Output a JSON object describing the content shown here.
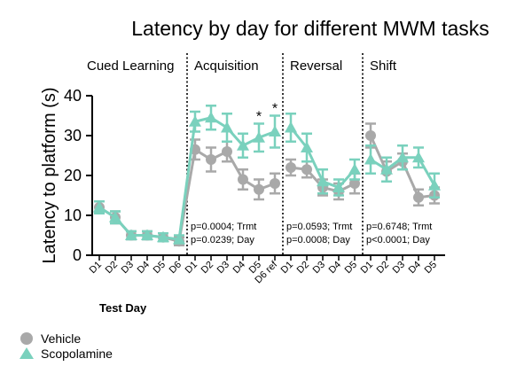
{
  "chart_data": {
    "type": "line",
    "title": "Latency by day for different MWM tasks",
    "ylabel": "Latency to platform (s)",
    "xlabel": "Test Day",
    "ylim": [
      0,
      40
    ],
    "yticks": [
      "0",
      "10",
      "20",
      "30",
      "40"
    ],
    "x": [
      "D1",
      "D2",
      "D3",
      "D4",
      "D5",
      "D6",
      "D1",
      "D2",
      "D3",
      "D4",
      "D5",
      "D6 ref",
      "D1",
      "D2",
      "D3",
      "D4",
      "D5",
      "D1",
      "D2",
      "D3",
      "D4",
      "D5"
    ],
    "phases": [
      {
        "label": "Cued Learning",
        "start": 0,
        "end": 5,
        "stats": []
      },
      {
        "label": "Acquisition",
        "start": 6,
        "end": 11,
        "stats": [
          "p=0.0004; Trmt",
          "p=0.0239; Day"
        ]
      },
      {
        "label": "Reversal",
        "start": 12,
        "end": 16,
        "stats": [
          "p=0.0593; Trmt",
          "p=0.0008; Day"
        ]
      },
      {
        "label": "Shift",
        "start": 17,
        "end": 21,
        "stats": [
          "p=0.6748; Trmt",
          "p<0.0001; Day"
        ]
      }
    ],
    "significance_marks": [
      {
        "index": 10,
        "text": "*"
      },
      {
        "index": 11,
        "text": "*"
      }
    ],
    "series": [
      {
        "name": "Vehicle",
        "color": "#a9a9a9",
        "marker": "circle",
        "values": [
          12,
          9.5,
          5,
          5,
          4.5,
          3.5,
          26.5,
          24,
          26,
          19,
          16.5,
          18,
          22,
          21.5,
          17,
          16,
          18,
          30,
          21,
          23.5,
          14.5,
          15
        ],
        "errors": [
          1.5,
          1.5,
          1,
          1,
          1,
          1,
          2.5,
          3,
          2.5,
          2.5,
          2.5,
          2.5,
          2,
          2,
          2,
          2,
          2.5,
          3,
          2.5,
          2,
          2,
          2
        ]
      },
      {
        "name": "Scopolamine",
        "color": "#7ad1bd",
        "marker": "triangle",
        "values": [
          12,
          9.5,
          5,
          5,
          4.5,
          4,
          33.5,
          34.5,
          32,
          27.5,
          29.5,
          31,
          32,
          27,
          18.5,
          17,
          21.5,
          24,
          21.5,
          24.5,
          24.5,
          17.5
        ],
        "errors": [
          1.5,
          1.5,
          1,
          1,
          1,
          1,
          2.5,
          3,
          3.5,
          3,
          3.5,
          4,
          3.5,
          3.5,
          3,
          2,
          2.5,
          3.5,
          3,
          3,
          2.5,
          3
        ]
      }
    ]
  }
}
